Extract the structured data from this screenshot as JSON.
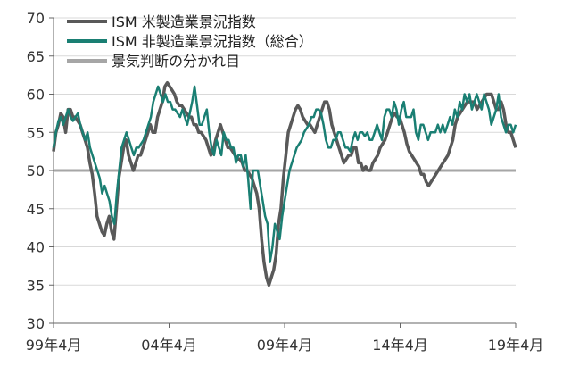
{
  "chart_data": {
    "type": "line",
    "title": "",
    "xlabel": "",
    "ylabel": "",
    "ylim": [
      30,
      70
    ],
    "yticks": [
      30,
      35,
      40,
      45,
      50,
      55,
      60,
      65,
      70
    ],
    "x_tick_labels": [
      "99年4月",
      "04年4月",
      "09年4月",
      "14年4月",
      "19年4月"
    ],
    "grid": "horizontal",
    "legend_position": "top-left",
    "x_start": "1999-04",
    "series": [
      {
        "name": "ISM 米製造業景況指数",
        "color": "#595959",
        "values": [
          52.5,
          55,
          56,
          57.5,
          57,
          55,
          58,
          58,
          57,
          57,
          56.5,
          56,
          55,
          54,
          53,
          51,
          49.5,
          47,
          44,
          43,
          42,
          41.5,
          43,
          44,
          42,
          41,
          45,
          49,
          51,
          53,
          54,
          52,
          51,
          50,
          51,
          52,
          52,
          53,
          54,
          55,
          56,
          55,
          55,
          57,
          58,
          59,
          61,
          61.5,
          61,
          60.5,
          60,
          59,
          58.5,
          58.5,
          58,
          57.5,
          57,
          57,
          56,
          56,
          55,
          55,
          54.5,
          54,
          53,
          52,
          52.5,
          54,
          55,
          56,
          55,
          54,
          53,
          53,
          52.5,
          52,
          51.5,
          51.5,
          51,
          50,
          50,
          49.5,
          49,
          48,
          47,
          45,
          41,
          38,
          36,
          35,
          36,
          37,
          39,
          43,
          45,
          49,
          52,
          55,
          56,
          57,
          58,
          58.5,
          58,
          57,
          56.5,
          56,
          56,
          55.5,
          55,
          56,
          57,
          58,
          59,
          59,
          58,
          56,
          55,
          54,
          53,
          52,
          51,
          51.5,
          52,
          52,
          53,
          53,
          51,
          51,
          50,
          50.5,
          50,
          50,
          51,
          51.5,
          52,
          53,
          53.5,
          54,
          55,
          56,
          57,
          57.5,
          57,
          57,
          56,
          55,
          53.5,
          52.5,
          52,
          51.5,
          51,
          50.5,
          49.5,
          49.5,
          48.5,
          48,
          48.5,
          49,
          49.5,
          50,
          50.5,
          51,
          51.5,
          52,
          53,
          54,
          56,
          57,
          57.5,
          58,
          58.5,
          59,
          59,
          59,
          59,
          58,
          58.5,
          59,
          59.5,
          60,
          60,
          60,
          59,
          58,
          58,
          59,
          58,
          56,
          55,
          55,
          54,
          53
        ],
        "stroke_width": 3.5
      },
      {
        "name": "ISM 非製造業景況指数（総合）",
        "color": "#1a7f73",
        "values": [
          53,
          55,
          56.5,
          57,
          56,
          57,
          58,
          57,
          56.5,
          57,
          57.5,
          56,
          55,
          54,
          55,
          53,
          52,
          51,
          50,
          49,
          47,
          48,
          47,
          46,
          44,
          43,
          47,
          50,
          53,
          54,
          55,
          54,
          53,
          52,
          53,
          53,
          53.5,
          54,
          55,
          56,
          57,
          59,
          60,
          61,
          60,
          59,
          60,
          59,
          59,
          58,
          58,
          57.5,
          57,
          58,
          57,
          56,
          57.5,
          59,
          61,
          58.5,
          56,
          56,
          57,
          58,
          55,
          53,
          52,
          54,
          53,
          52,
          55,
          54,
          54,
          53,
          53,
          51,
          52,
          52,
          50.5,
          52,
          49,
          45,
          50,
          50,
          50,
          48,
          46,
          44,
          43,
          38,
          40,
          43,
          42,
          41,
          44,
          46,
          48,
          50,
          51,
          52,
          53,
          53.5,
          54,
          55,
          55.5,
          56,
          57,
          57,
          58,
          58,
          57.5,
          56,
          54,
          53,
          53,
          54,
          54,
          55,
          55,
          54,
          53,
          53,
          52.5,
          54,
          55,
          54,
          55,
          55,
          54.5,
          55,
          54,
          54,
          55,
          56,
          55,
          54,
          57,
          58,
          58,
          57,
          59,
          58,
          56,
          58,
          59,
          57,
          57,
          57,
          58,
          55,
          54,
          56,
          56,
          55,
          54,
          55,
          55,
          55,
          56,
          55,
          56,
          55,
          56,
          57,
          56,
          58,
          57,
          59,
          58,
          60,
          59,
          60,
          58,
          59,
          60,
          59,
          58,
          60,
          59,
          58,
          56,
          57,
          58,
          60,
          57,
          56,
          55,
          56,
          56,
          55,
          56
        ],
        "stroke_width": 2.5
      },
      {
        "name": "景気判断の分かれ目",
        "color": "#a6a6a6",
        "values": [
          50,
          50
        ],
        "stroke_width": 3
      }
    ]
  }
}
